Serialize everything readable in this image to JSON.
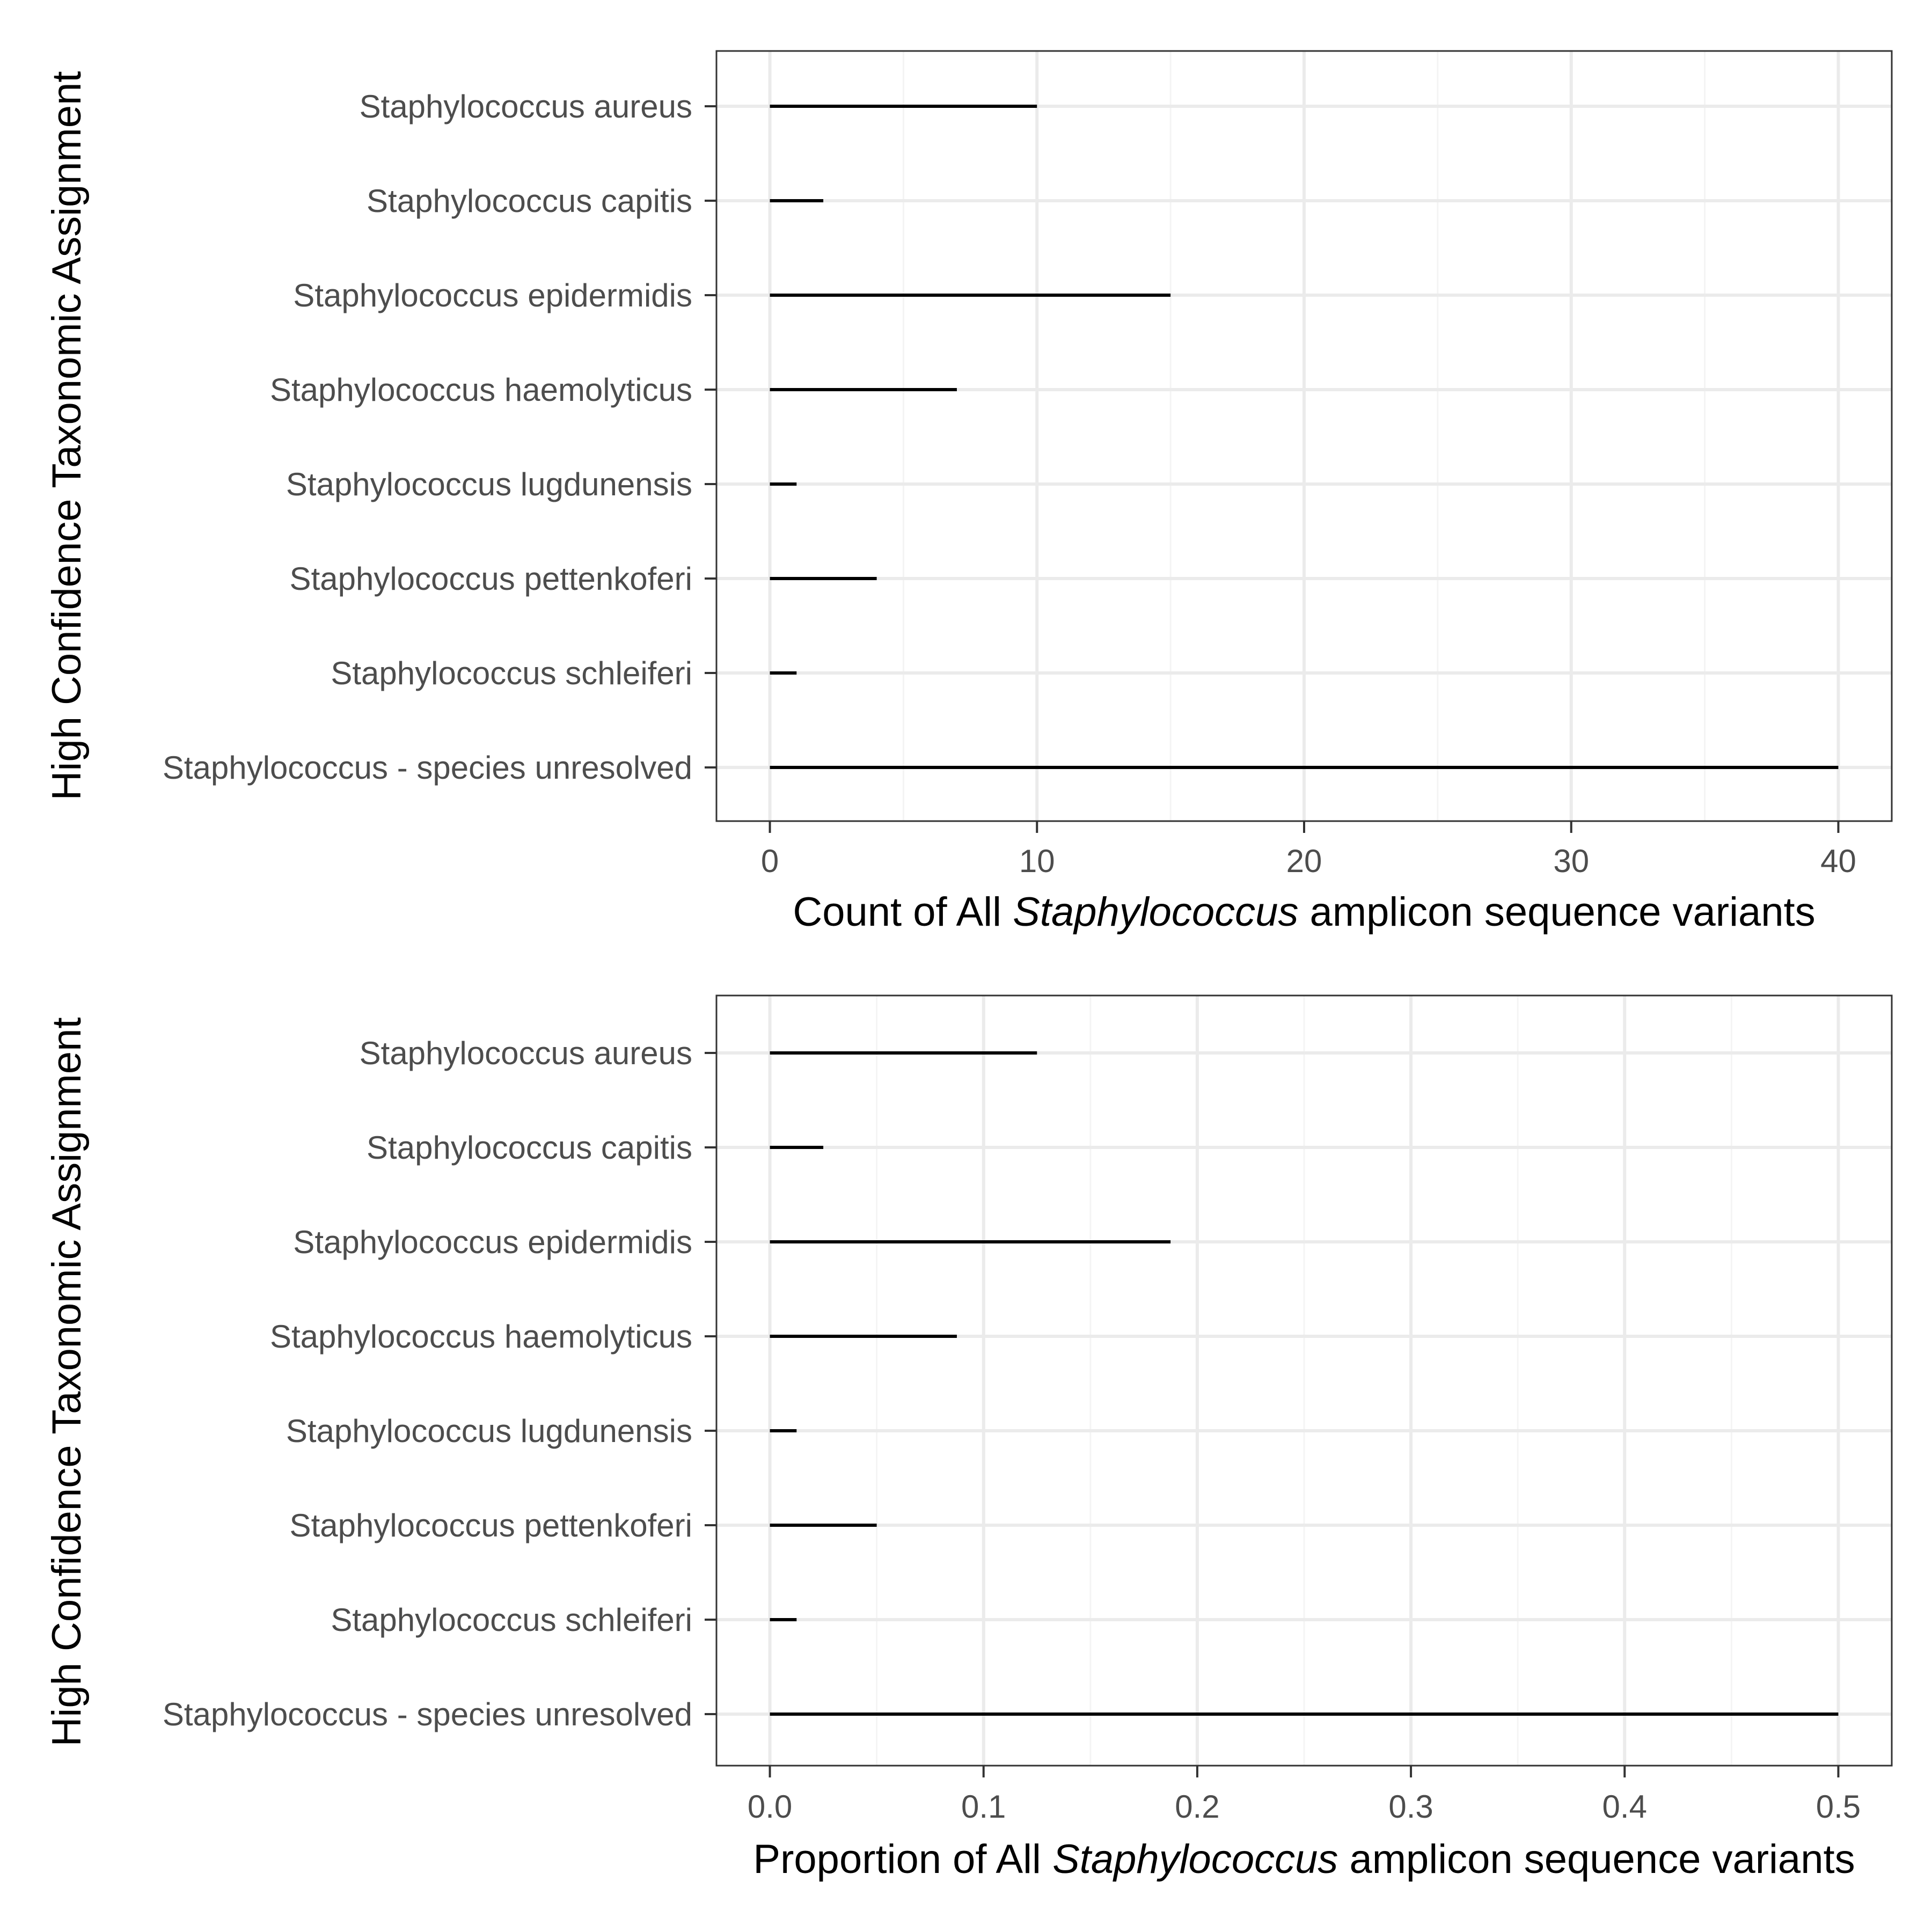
{
  "colors": {
    "panel_border": "#333333",
    "grid_major": "#ebebeb",
    "grid_minor": "#f4f4f4",
    "bar": "#000000",
    "tick_label": "#4d4d4d",
    "axis_title": "#000000"
  },
  "chart_data": [
    {
      "type": "bar",
      "orientation": "horizontal",
      "categories": [
        "Staphylococcus aureus",
        "Staphylococcus capitis",
        "Staphylococcus epidermidis",
        "Staphylococcus haemolyticus",
        "Staphylococcus lugdunensis",
        "Staphylococcus pettenkoferi",
        "Staphylococcus schleiferi",
        "Staphylococcus - species unresolved"
      ],
      "values": [
        10,
        2,
        15,
        7,
        1,
        4,
        1,
        40
      ],
      "xlabel_prefix": "Count of All ",
      "xlabel_italic": "Staphylococcus",
      "xlabel_suffix": " amplicon sequence variants",
      "ylabel": "High Confidence Taxonomic Assignment",
      "xlim": [
        -2,
        42
      ],
      "xticks": [
        0,
        10,
        20,
        30,
        40
      ],
      "xtick_labels": [
        "0",
        "10",
        "20",
        "30",
        "40"
      ],
      "minor_xticks": [
        5,
        15,
        25,
        35
      ],
      "grid": true
    },
    {
      "type": "bar",
      "orientation": "horizontal",
      "categories": [
        "Staphylococcus aureus",
        "Staphylococcus capitis",
        "Staphylococcus epidermidis",
        "Staphylococcus haemolyticus",
        "Staphylococcus lugdunensis",
        "Staphylococcus pettenkoferi",
        "Staphylococcus schleiferi",
        "Staphylococcus - species unresolved"
      ],
      "values": [
        0.125,
        0.025,
        0.1875,
        0.0875,
        0.0125,
        0.05,
        0.0125,
        0.5
      ],
      "xlabel_prefix": "Proportion of All ",
      "xlabel_italic": "Staphylococcus",
      "xlabel_suffix": " amplicon sequence variants",
      "ylabel": "High Confidence Taxonomic Assignment",
      "xlim": [
        -0.025,
        0.525
      ],
      "xticks": [
        0.0,
        0.1,
        0.2,
        0.3,
        0.4,
        0.5
      ],
      "xtick_labels": [
        "0.0",
        "0.1",
        "0.2",
        "0.3",
        "0.4",
        "0.5"
      ],
      "minor_xticks": [
        0.05,
        0.15,
        0.25,
        0.35,
        0.45
      ],
      "grid": true
    }
  ]
}
